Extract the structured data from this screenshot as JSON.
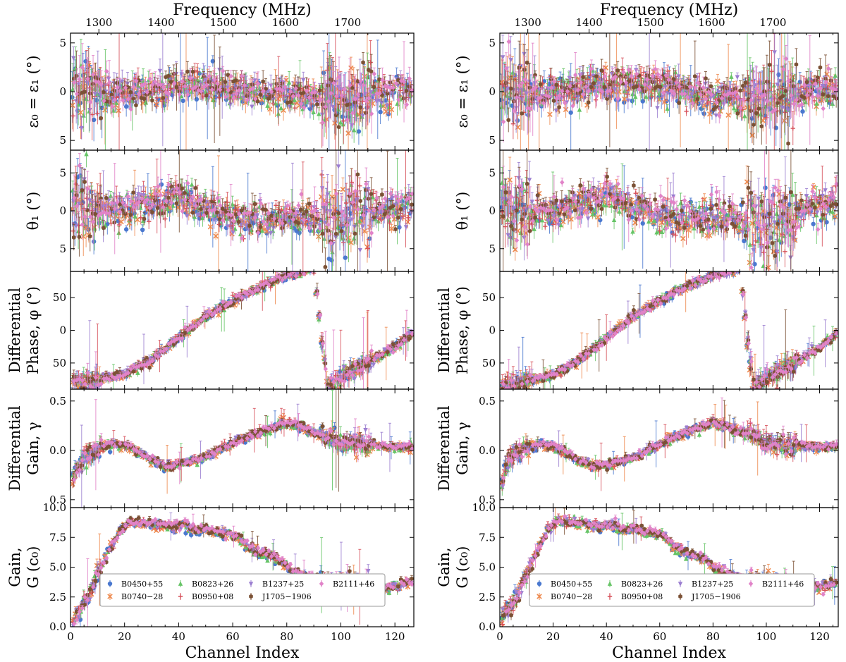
{
  "figure": {
    "top_axis_label": "Frequency (MHz)",
    "bottom_axis_label": "Channel Index",
    "top_ticks": [
      "1300",
      "1400",
      "1500",
      "1600",
      "1700"
    ],
    "bottom_ticks": [
      "0",
      "20",
      "40",
      "60",
      "80",
      "100",
      "120"
    ]
  },
  "legend": [
    {
      "name": "B0450+55",
      "color": "#4a78cf",
      "marker": "circle"
    },
    {
      "name": "B0740−28",
      "color": "#ee8a4f",
      "marker": "x"
    },
    {
      "name": "B0823+26",
      "color": "#66c466",
      "marker": "triangle"
    },
    {
      "name": "B0950+08",
      "color": "#d6505a",
      "marker": "plus"
    },
    {
      "name": "B1237+25",
      "color": "#9b7ed0",
      "marker": "tri"
    },
    {
      "name": "J1705−1906",
      "color": "#7b5135",
      "marker": "hexagon"
    },
    {
      "name": "B2111+46",
      "color": "#e183c8",
      "marker": "diamond"
    }
  ],
  "chart_data": [
    {
      "type": "scatter",
      "panel": "left",
      "x_label": "Channel Index",
      "x_range": [
        0,
        127
      ],
      "top_axis": {
        "label": "Frequency (MHz)",
        "ticks": [
          1300,
          1400,
          1500,
          1600,
          1700
        ],
        "channel_at_tick": [
          10.5,
          33.5,
          56.5,
          79.5,
          102.5
        ]
      },
      "rows": [
        {
          "key": "epsilon",
          "ylabel": [
            "ε₀ = ε₁ (°)"
          ],
          "ylim": [
            -6,
            6
          ],
          "yticks": [
            "5",
            "0",
            "5"
          ],
          "ytick_values": [
            5,
            0,
            -5
          ],
          "channels": [
            0,
            20,
            40,
            60,
            80,
            100,
            120
          ],
          "values": [
            0.3,
            -0.2,
            0.6,
            0.3,
            -0.5,
            -0.8,
            0.2
          ]
        },
        {
          "key": "theta",
          "ylabel": [
            "θ₁ (°)"
          ],
          "ylim": [
            -8,
            8
          ],
          "yticks": [
            "5",
            "0",
            "5"
          ],
          "ytick_values": [
            5,
            0,
            -5
          ],
          "channels": [
            0,
            20,
            40,
            60,
            80,
            100,
            120
          ],
          "values": [
            0.2,
            0.1,
            1.8,
            -1.2,
            -0.9,
            -1.2,
            0.5
          ]
        },
        {
          "key": "phase",
          "ylabel": [
            "Differential",
            "Phase, φ (°)"
          ],
          "ylim": [
            -90,
            90
          ],
          "yticks": [
            "50",
            "0",
            "50"
          ],
          "ytick_values": [
            50,
            0,
            -50
          ],
          "channels": [
            0,
            10,
            20,
            30,
            40,
            50,
            60,
            70,
            80,
            90,
            95,
            100,
            110,
            120,
            127
          ],
          "values": [
            -80,
            -76,
            -67,
            -45,
            -12,
            20,
            44,
            66,
            83,
            95,
            -90,
            -73,
            -50,
            -25,
            -3
          ]
        },
        {
          "key": "diffgain",
          "ylabel": [
            "Differential",
            "Gain, γ"
          ],
          "ylim": [
            -0.58,
            0.62
          ],
          "yticks": [
            "0.5",
            "0.0",
            "0.5"
          ],
          "ytick_values": [
            0.5,
            0.0,
            -0.5
          ],
          "channels": [
            0,
            2,
            5,
            10,
            15,
            20,
            25,
            30,
            35,
            40,
            50,
            60,
            70,
            80,
            90,
            100,
            110,
            120,
            127
          ],
          "values": [
            -0.45,
            -0.2,
            -0.08,
            0.0,
            0.06,
            0.05,
            -0.02,
            -0.1,
            -0.16,
            -0.14,
            -0.07,
            0.07,
            0.18,
            0.28,
            0.18,
            0.08,
            0.05,
            0.03,
            0.04
          ]
        },
        {
          "key": "gain",
          "ylabel": [
            "Gain,",
            "G (c₀)"
          ],
          "ylim": [
            0,
            10
          ],
          "yticks": [
            "0.0",
            "2.5",
            "5.0",
            "7.5",
            "10.0"
          ],
          "ytick_values": [
            0,
            2.5,
            5,
            7.5,
            10
          ],
          "channels": [
            0,
            3,
            6,
            10,
            14,
            18,
            22,
            26,
            30,
            34,
            38,
            42,
            46,
            50,
            54,
            58,
            62,
            66,
            70,
            74,
            78,
            82,
            86,
            90,
            94,
            98,
            102,
            106,
            110,
            114,
            118,
            122,
            127
          ],
          "values": [
            0.3,
            1.3,
            2.4,
            4.2,
            6.3,
            8.0,
            8.8,
            8.7,
            8.6,
            8.5,
            8.3,
            8.5,
            8.0,
            8.2,
            7.9,
            7.8,
            7.5,
            6.6,
            6.2,
            5.9,
            5.5,
            4.6,
            4.3,
            4.0,
            3.7,
            3.6,
            3.7,
            3.5,
            3.6,
            3.1,
            3.3,
            3.5,
            3.8
          ]
        }
      ]
    },
    {
      "type": "scatter",
      "panel": "right",
      "x_label": "Channel Index",
      "x_range": [
        0,
        127
      ],
      "top_axis": {
        "label": "Frequency (MHz)",
        "ticks": [
          1300,
          1400,
          1500,
          1600,
          1700
        ],
        "channel_at_tick": [
          10.5,
          33.5,
          56.5,
          79.5,
          102.5
        ]
      },
      "rows": [
        {
          "key": "epsilon",
          "ylabel": [
            "ε₀ = ε₁ (°)"
          ],
          "ylim": [
            -6,
            6
          ],
          "yticks": [
            "5",
            "0",
            "5"
          ],
          "ytick_values": [
            5,
            0,
            -5
          ],
          "channels": [
            0,
            20,
            40,
            60,
            80,
            100,
            120
          ],
          "values": [
            0.2,
            -0.3,
            0.8,
            0.5,
            -0.6,
            -0.9,
            0.0
          ]
        },
        {
          "key": "theta",
          "ylabel": [
            "θ₁ (°)"
          ],
          "ylim": [
            -8,
            8
          ],
          "yticks": [
            "5",
            "0",
            "5"
          ],
          "ytick_values": [
            5,
            0,
            -5
          ],
          "channels": [
            0,
            20,
            40,
            60,
            80,
            100,
            120
          ],
          "values": [
            0.3,
            0.0,
            2.0,
            -1.0,
            -1.0,
            -1.5,
            0.8
          ]
        },
        {
          "key": "phase",
          "ylabel": [
            "Differential",
            "Phase, φ (°)"
          ],
          "ylim": [
            -90,
            90
          ],
          "yticks": [
            "50",
            "0",
            "50"
          ],
          "ytick_values": [
            50,
            0,
            -50
          ],
          "channels": [
            0,
            10,
            20,
            30,
            40,
            50,
            60,
            70,
            80,
            90,
            95,
            100,
            110,
            120,
            127
          ],
          "values": [
            -85,
            -78,
            -68,
            -46,
            -12,
            20,
            44,
            66,
            83,
            95,
            -90,
            -75,
            -52,
            -27,
            -4
          ]
        },
        {
          "key": "diffgain",
          "ylabel": [
            "Differential",
            "Gain, γ"
          ],
          "ylim": [
            -0.58,
            0.62
          ],
          "yticks": [
            "0.5",
            "0.0",
            "0.5"
          ],
          "ytick_values": [
            0.5,
            0.0,
            -0.5
          ],
          "channels": [
            0,
            2,
            5,
            10,
            15,
            20,
            25,
            30,
            35,
            40,
            50,
            60,
            70,
            80,
            90,
            100,
            110,
            120,
            127
          ],
          "values": [
            -0.4,
            -0.18,
            -0.06,
            0.02,
            0.06,
            0.04,
            -0.03,
            -0.12,
            -0.16,
            -0.15,
            -0.08,
            0.06,
            0.18,
            0.28,
            0.2,
            0.08,
            0.05,
            0.03,
            0.04
          ]
        },
        {
          "key": "gain",
          "ylabel": [
            "Gain,",
            "G (c₀)"
          ],
          "ylim": [
            0,
            10
          ],
          "yticks": [
            "0.0",
            "2.5",
            "5.0",
            "7.5",
            "10.0"
          ],
          "ytick_values": [
            0,
            2.5,
            5,
            7.5,
            10
          ],
          "channels": [
            0,
            3,
            6,
            10,
            14,
            18,
            22,
            26,
            30,
            34,
            38,
            42,
            46,
            50,
            54,
            58,
            62,
            66,
            70,
            74,
            78,
            82,
            86,
            90,
            94,
            98,
            102,
            106,
            110,
            114,
            118,
            122,
            127
          ],
          "values": [
            0.4,
            1.4,
            2.5,
            4.3,
            6.4,
            8.1,
            8.9,
            8.8,
            8.6,
            8.5,
            8.3,
            8.6,
            8.0,
            8.2,
            7.9,
            7.8,
            7.5,
            6.6,
            6.2,
            5.9,
            5.5,
            4.7,
            4.4,
            4.1,
            3.8,
            3.7,
            3.7,
            3.5,
            3.6,
            3.1,
            3.3,
            3.5,
            3.8
          ]
        }
      ]
    }
  ]
}
